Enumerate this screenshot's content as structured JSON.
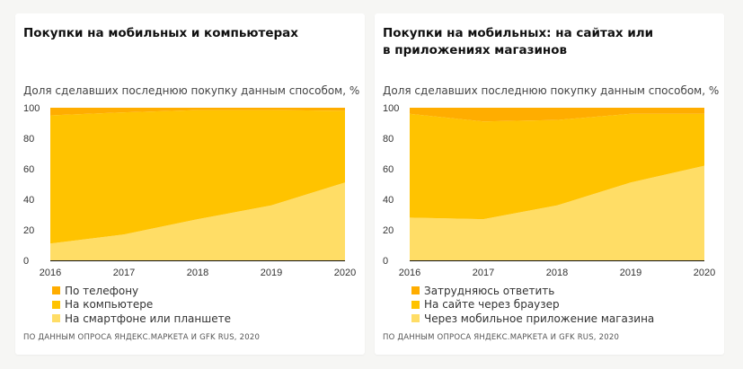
{
  "colors": {
    "top": "#ffad00",
    "middle": "#ffc300",
    "bottom": "#ffdd66",
    "axis": "#111111"
  },
  "chart_data": [
    {
      "type": "area",
      "stacked": true,
      "title": "Покупки на мобильных и компьютерах",
      "subtitle": "Доля сделавших последнюю покупку данным способом, %",
      "xlabel": "",
      "ylabel": "Доля сделавших последнюю покупку данным способом, %",
      "x": [
        "2016",
        "2017",
        "2018",
        "2019",
        "2020"
      ],
      "yticks": [
        "0",
        "20",
        "40",
        "60",
        "80",
        "100"
      ],
      "ylim": [
        0,
        100
      ],
      "grid": false,
      "legend_position": "bottom-left",
      "series": [
        {
          "name": "На смартфоне или планшете",
          "color_key": "bottom",
          "values": [
            11,
            17,
            27,
            36,
            51
          ]
        },
        {
          "name": "На компьютере",
          "color_key": "middle",
          "values": [
            84,
            80,
            71.5,
            62.5,
            47
          ]
        },
        {
          "name": "По телефону",
          "color_key": "top",
          "values": [
            5,
            3,
            1.5,
            1.5,
            2
          ]
        }
      ],
      "legend": [
        "По телефону",
        "На компьютере",
        "На смартфоне или планшете"
      ],
      "source": "ПО ДАННЫМ ОПРОСА ЯНДЕКС.МАРКЕТА И GFK RUS, 2020"
    },
    {
      "type": "area",
      "stacked": true,
      "title": "Покупки на мобильных: на сайтах или в приложениях магазинов",
      "subtitle": "Доля сделавших последнюю покупку данным способом, %",
      "xlabel": "",
      "ylabel": "Доля сделавших последнюю покупку данным способом, %",
      "x": [
        "2016",
        "2017",
        "2018",
        "2019",
        "2020"
      ],
      "yticks": [
        "0",
        "20",
        "40",
        "60",
        "80",
        "100"
      ],
      "ylim": [
        0,
        100
      ],
      "grid": false,
      "legend_position": "bottom-left",
      "series": [
        {
          "name": "Через мобильное приложение магазина",
          "color_key": "bottom",
          "values": [
            28,
            27,
            36,
            51,
            62
          ]
        },
        {
          "name": "На сайте через браузер",
          "color_key": "middle",
          "values": [
            68,
            64,
            56,
            45,
            34
          ]
        },
        {
          "name": "Затрудняюсь ответить",
          "color_key": "top",
          "values": [
            4,
            9,
            8,
            4,
            4
          ]
        }
      ],
      "legend": [
        "Затрудняюсь ответить",
        "На сайте через браузер",
        "Через мобильное приложение магазина"
      ],
      "source": "ПО ДАННЫМ ОПРОСА ЯНДЕКС.МАРКЕТА И GFK RUS, 2020"
    }
  ],
  "cards": [
    {
      "title": "Покупки на мобильных и компьютерах",
      "subtitle": "Доля сделавших последнюю покупку данным способом, %",
      "legend": [
        {
          "label": "По телефону",
          "color": "#ffad00"
        },
        {
          "label": "На компьютере",
          "color": "#ffc300"
        },
        {
          "label": "На смартфоне или планшете",
          "color": "#ffdd66"
        }
      ],
      "source": "ПО ДАННЫМ ОПРОСА ЯНДЕКС.МАРКЕТА И GFK RUS, 2020"
    },
    {
      "title": "Покупки на мобильных: на сайтах или\nв приложениях магазинов",
      "subtitle": "Доля сделавших последнюю покупку данным способом, %",
      "legend": [
        {
          "label": "Затрудняюсь ответить",
          "color": "#ffad00"
        },
        {
          "label": "На сайте через браузер",
          "color": "#ffc300"
        },
        {
          "label": "Через мобильное приложение магазина",
          "color": "#ffdd66"
        }
      ],
      "source": "ПО ДАННЫМ ОПРОСА ЯНДЕКС.МАРКЕТА И GFK RUS, 2020"
    }
  ]
}
